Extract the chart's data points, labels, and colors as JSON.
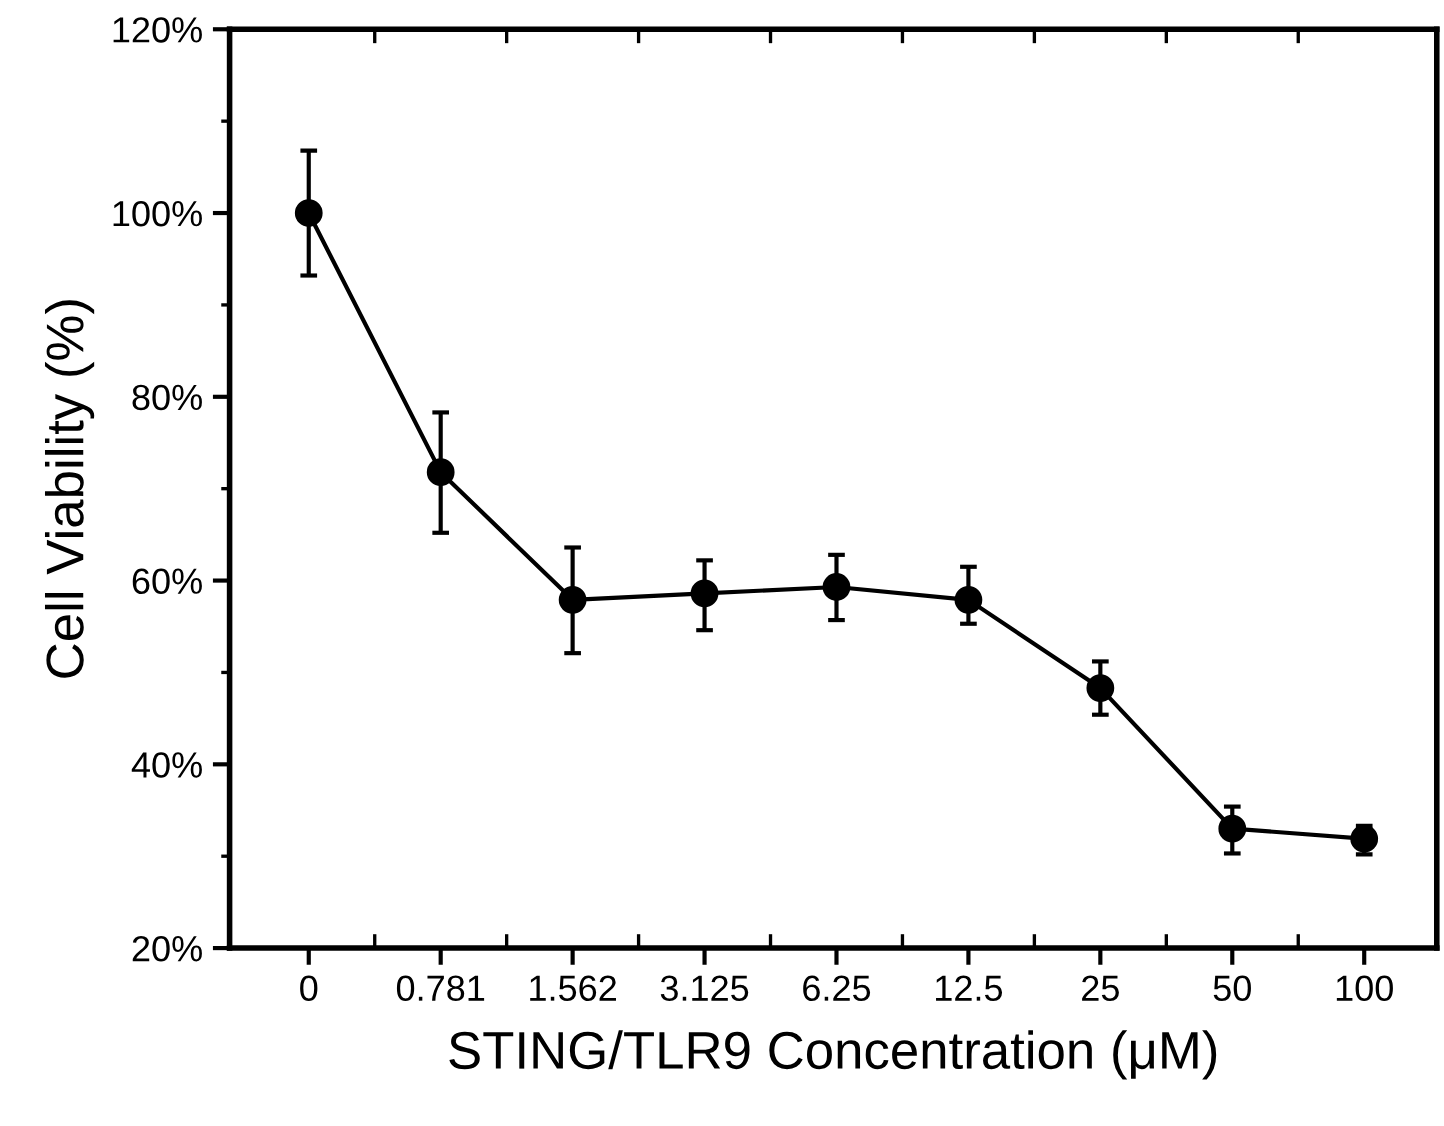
{
  "chart_data": {
    "type": "line",
    "xlabel": "STING/TLR9 Concentration (μM)",
    "ylabel": "Cell Viability (%)",
    "categories": [
      "0",
      "0.781",
      "1.562",
      "3.125",
      "6.25",
      "12.5",
      "25",
      "50",
      "100"
    ],
    "series": [
      {
        "color": "#000000",
        "values": [
          100,
          71.8,
          57.9,
          58.6,
          59.3,
          57.9,
          48.3,
          33.0,
          31.9
        ],
        "errors": [
          [
            93.2,
            106.8
          ],
          [
            65.2,
            78.3
          ],
          [
            52.1,
            63.6
          ],
          [
            54.6,
            62.2
          ],
          [
            55.7,
            62.8
          ],
          [
            55.3,
            61.5
          ],
          [
            45.4,
            51.2
          ],
          [
            30.3,
            35.4
          ],
          [
            30.2,
            33.3
          ]
        ]
      }
    ],
    "ylim": [
      20,
      120
    ],
    "yticks": [
      {
        "value": 20,
        "label": "20%"
      },
      {
        "value": 40,
        "label": "40%"
      },
      {
        "value": 60,
        "label": "60%"
      },
      {
        "value": 80,
        "label": "80%"
      },
      {
        "value": 100,
        "label": "100%"
      },
      {
        "value": 120,
        "label": "120%"
      }
    ],
    "marker": "circle",
    "line_style": "solid",
    "grid": false,
    "legend": false
  }
}
